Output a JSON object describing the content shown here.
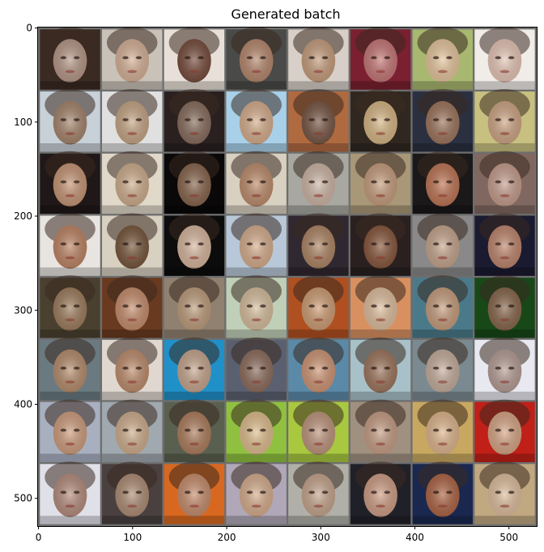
{
  "chart_data": {
    "type": "image",
    "title": "Generated batch",
    "image": {
      "width_units": 530,
      "height_units": 530,
      "grid_rows": 8,
      "grid_cols": 8,
      "tile_size": 64,
      "padding": 2,
      "pad_color": "#6e6e6e",
      "content": "8x8 grid of generated face images"
    },
    "x_axis": {
      "ticks": [
        0,
        100,
        200,
        300,
        400,
        500
      ],
      "range": [
        -0.5,
        529.5
      ]
    },
    "y_axis": {
      "ticks": [
        0,
        100,
        200,
        300,
        400,
        500
      ],
      "range": [
        529.5,
        -0.5
      ],
      "inverted": true
    },
    "grid": false,
    "tile_palette": [
      [
        "#3a2a22",
        "#b89a8a"
      ],
      [
        "#c9c2b8",
        "#d8b49a"
      ],
      [
        "#e8e0d8",
        "#7a5040"
      ],
      [
        "#4a4a48",
        "#b88a70"
      ],
      [
        "#d8d0c8",
        "#c8a080"
      ],
      [
        "#7a2030",
        "#c87a7a"
      ],
      [
        "#a8b870",
        "#e8c8a0"
      ],
      [
        "#f0ece8",
        "#e8c8b8"
      ],
      [
        "#c8d0d8",
        "#a88870"
      ],
      [
        "#e0e0e0",
        "#c8a888"
      ],
      [
        "#2a2020",
        "#8a7060"
      ],
      [
        "#a8d0e8",
        "#d8b090"
      ],
      [
        "#b06a40",
        "#7a5a48"
      ],
      [
        "#302820",
        "#d8b888"
      ],
      [
        "#2a3040",
        "#a07860"
      ],
      [
        "#c8c080",
        "#d0a888"
      ],
      [
        "#201818",
        "#c89878"
      ],
      [
        "#e0d8c8",
        "#d0b090"
      ],
      [
        "#0a0808",
        "#8a6850"
      ],
      [
        "#d8d0c0",
        "#c09070"
      ],
      [
        "#a8a8a0",
        "#d0b8a8"
      ],
      [
        "#a89878",
        "#c8a080"
      ],
      [
        "#1a1818",
        "#c07858"
      ],
      [
        "#806860",
        "#c8a090"
      ],
      [
        "#e8e4e0",
        "#c08868"
      ],
      [
        "#d8d0c0",
        "#7a5a40"
      ],
      [
        "#0c0c0c",
        "#d8b8a0"
      ],
      [
        "#b8c8d8",
        "#d8b090"
      ],
      [
        "#302830",
        "#b08868"
      ],
      [
        "#2a2020",
        "#8a5a40"
      ],
      [
        "#8a8888",
        "#c8a890"
      ],
      [
        "#1a1a30",
        "#c08870"
      ],
      [
        "#4a4030",
        "#a08060"
      ],
      [
        "#6a3a20",
        "#c89070"
      ],
      [
        "#908070",
        "#c0a080"
      ],
      [
        "#c0d0b8",
        "#d8c0a0"
      ],
      [
        "#b05020",
        "#d0a078"
      ],
      [
        "#d89060",
        "#e0c0a0"
      ],
      [
        "#4a7a8a",
        "#c8a080"
      ],
      [
        "#184818",
        "#8a6a50"
      ],
      [
        "#6a7a80",
        "#b89070"
      ],
      [
        "#e0d8d0",
        "#c09070"
      ],
      [
        "#2090c8",
        "#c8a890"
      ],
      [
        "#5a6070",
        "#907060"
      ],
      [
        "#5a8aa8",
        "#d09878"
      ],
      [
        "#a8c0c8",
        "#a07860"
      ],
      [
        "#7a8a90",
        "#c8b0a0"
      ],
      [
        "#e8e8f0",
        "#b8a098"
      ],
      [
        "#a8b0c0",
        "#d0a080"
      ],
      [
        "#a0a8b0",
        "#d0b090"
      ],
      [
        "#5a6050",
        "#b08060"
      ],
      [
        "#90c040",
        "#e0c090"
      ],
      [
        "#a8c840",
        "#c09880"
      ],
      [
        "#a09080",
        "#c8a088"
      ],
      [
        "#c8a860",
        "#e0b890"
      ],
      [
        "#c02018",
        "#d8a888"
      ],
      [
        "#e0e0e8",
        "#b89080"
      ],
      [
        "#4a4040",
        "#b09078"
      ],
      [
        "#d86820",
        "#c89070"
      ],
      [
        "#b0a8b8",
        "#d8b090"
      ],
      [
        "#b0b0a8",
        "#c8a890"
      ],
      [
        "#202028",
        "#d0a088"
      ],
      [
        "#1a2850",
        "#b06848"
      ],
      [
        "#c0a880",
        "#e0c0a0"
      ]
    ]
  }
}
